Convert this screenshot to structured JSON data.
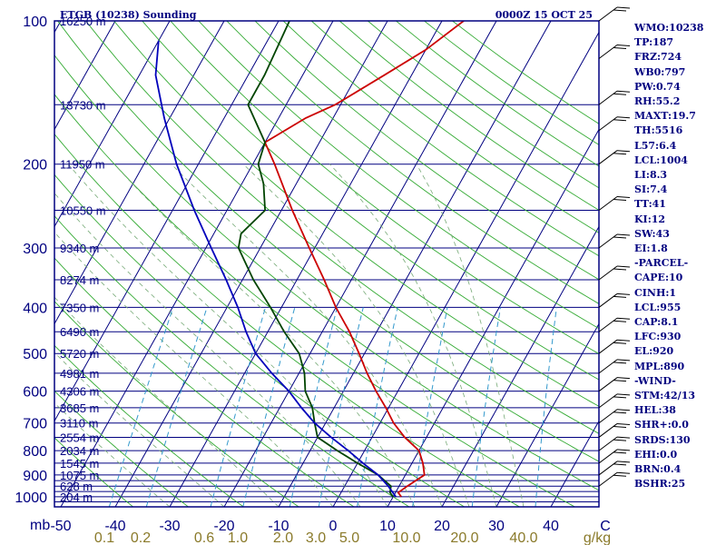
{
  "header": {
    "station": "ETGB (10238) Sounding",
    "time": "0000Z 15 OCT 25"
  },
  "colors": {
    "frame": "#000080",
    "isobar": "#000080",
    "isotherm": "#000080",
    "dry_adiabat": "#33aa33",
    "moist_adiabat": "#77aa77",
    "mixing_ratio": "#3399cc",
    "temperature": "#cc0000",
    "dewpoint": "#004400",
    "parcel": "#0000bb",
    "olive_text": "#8a7a2a"
  },
  "axes": {
    "pressure_label": "mb",
    "pressure_ticks": [
      "100",
      "200",
      "300",
      "400",
      "500",
      "600",
      "700",
      "800",
      "900",
      "1000"
    ],
    "temp_ticks": [
      "-50",
      "-40",
      "-30",
      "-20",
      "-10",
      "0",
      "10",
      "20",
      "30",
      "40",
      "C"
    ],
    "mixing_ratio_ticks": [
      "0.1",
      "0.2",
      "0.6",
      "1.0",
      "2.0",
      "3.0",
      "5.0",
      "10.0",
      "20.0",
      "40.0",
      "g/kg"
    ]
  },
  "height_labels": [
    {
      "p": 100,
      "label": "16250 m"
    },
    {
      "p": 150,
      "label": "13730 m"
    },
    {
      "p": 200,
      "label": "11950 m"
    },
    {
      "p": 250,
      "label": "10550 m"
    },
    {
      "p": 300,
      "label": "9340 m"
    },
    {
      "p": 350,
      "label": "8274 m"
    },
    {
      "p": 400,
      "label": "7350 m"
    },
    {
      "p": 450,
      "label": "6490 m"
    },
    {
      "p": 500,
      "label": "5720 m"
    },
    {
      "p": 550,
      "label": "4981 m"
    },
    {
      "p": 600,
      "label": "4306 m"
    },
    {
      "p": 650,
      "label": "3685 m"
    },
    {
      "p": 700,
      "label": "3110 m"
    },
    {
      "p": 750,
      "label": "2554 m"
    },
    {
      "p": 800,
      "label": "2034 m"
    },
    {
      "p": 850,
      "label": "1545 m"
    },
    {
      "p": 900,
      "label": "1075 m"
    },
    {
      "p": 950,
      "label": "628 m"
    },
    {
      "p": 1000,
      "label": "204 m"
    }
  ],
  "indices": [
    "WMO:10238",
    "TP:187",
    "FRZ:724",
    "WB0:797",
    "PW:0.74",
    "RH:55.2",
    "MAXT:19.7",
    "TH:5516",
    "L57:6.4",
    "LCL:1004",
    "LI:8.3",
    "SI:7.4",
    "TT:41",
    "KI:12",
    "SW:43",
    "EI:1.8",
    "-PARCEL-",
    "CAPE:10",
    "CINH:1",
    "LCL:955",
    "CAP:8.1",
    "LFC:930",
    "EL:920",
    "MPL:890",
    "-WIND-",
    "STM:42/13",
    "HEL:38",
    "SHR+:0.0",
    "SRDS:130",
    "EHI:0.0",
    "BRN:0.4",
    "BSHR:25"
  ],
  "chart_data": {
    "type": "line",
    "title": "ETGB (10238) Sounding 0000Z 15 OCT 25",
    "xlabel": "C",
    "ylabel": "mb",
    "xlim": [
      -50,
      50
    ],
    "ylim": [
      1000,
      100
    ],
    "series": [
      {
        "name": "Temperature",
        "points": [
          [
            1000,
            11.5
          ],
          [
            980,
            10.5
          ],
          [
            950,
            11.5
          ],
          [
            900,
            13.5
          ],
          [
            850,
            12
          ],
          [
            800,
            10
          ],
          [
            750,
            6
          ],
          [
            700,
            2.5
          ],
          [
            650,
            -0.5
          ],
          [
            600,
            -4
          ],
          [
            550,
            -7.5
          ],
          [
            500,
            -11
          ],
          [
            450,
            -15
          ],
          [
            400,
            -20
          ],
          [
            350,
            -25
          ],
          [
            300,
            -31
          ],
          [
            250,
            -38
          ],
          [
            200,
            -46
          ],
          [
            180,
            -50
          ],
          [
            160,
            -45
          ],
          [
            150,
            -41
          ],
          [
            130,
            -35
          ],
          [
            115,
            -30
          ],
          [
            100,
            -26
          ]
        ]
      },
      {
        "name": "Dewpoint",
        "points": [
          [
            1000,
            10
          ],
          [
            980,
            9
          ],
          [
            950,
            8.5
          ],
          [
            900,
            5
          ],
          [
            850,
            0
          ],
          [
            800,
            -5
          ],
          [
            750,
            -10
          ],
          [
            700,
            -12
          ],
          [
            650,
            -14
          ],
          [
            600,
            -17
          ],
          [
            550,
            -19
          ],
          [
            500,
            -22
          ],
          [
            450,
            -27
          ],
          [
            400,
            -32
          ],
          [
            350,
            -38
          ],
          [
            300,
            -44
          ],
          [
            280,
            -45
          ],
          [
            250,
            -43
          ],
          [
            220,
            -46
          ],
          [
            200,
            -49
          ],
          [
            180,
            -50
          ],
          [
            150,
            -57
          ],
          [
            130,
            -57
          ],
          [
            100,
            -58
          ]
        ]
      },
      {
        "name": "Parcel",
        "points": [
          [
            1000,
            10.5
          ],
          [
            950,
            8
          ],
          [
            900,
            5
          ],
          [
            850,
            1
          ],
          [
            800,
            -3
          ],
          [
            750,
            -7.5
          ],
          [
            700,
            -12
          ],
          [
            650,
            -16
          ],
          [
            600,
            -20
          ],
          [
            550,
            -25
          ],
          [
            500,
            -30
          ],
          [
            450,
            -34
          ],
          [
            400,
            -38
          ],
          [
            350,
            -43
          ],
          [
            300,
            -49
          ],
          [
            250,
            -56
          ],
          [
            200,
            -64
          ],
          [
            160,
            -71
          ],
          [
            130,
            -77
          ],
          [
            110,
            -80
          ]
        ]
      }
    ],
    "wind_barbs_mb": [
      950,
      900,
      850,
      800,
      750,
      700,
      650,
      600,
      550,
      500,
      450,
      400,
      350,
      300,
      250,
      200,
      170,
      150,
      120,
      100
    ]
  }
}
